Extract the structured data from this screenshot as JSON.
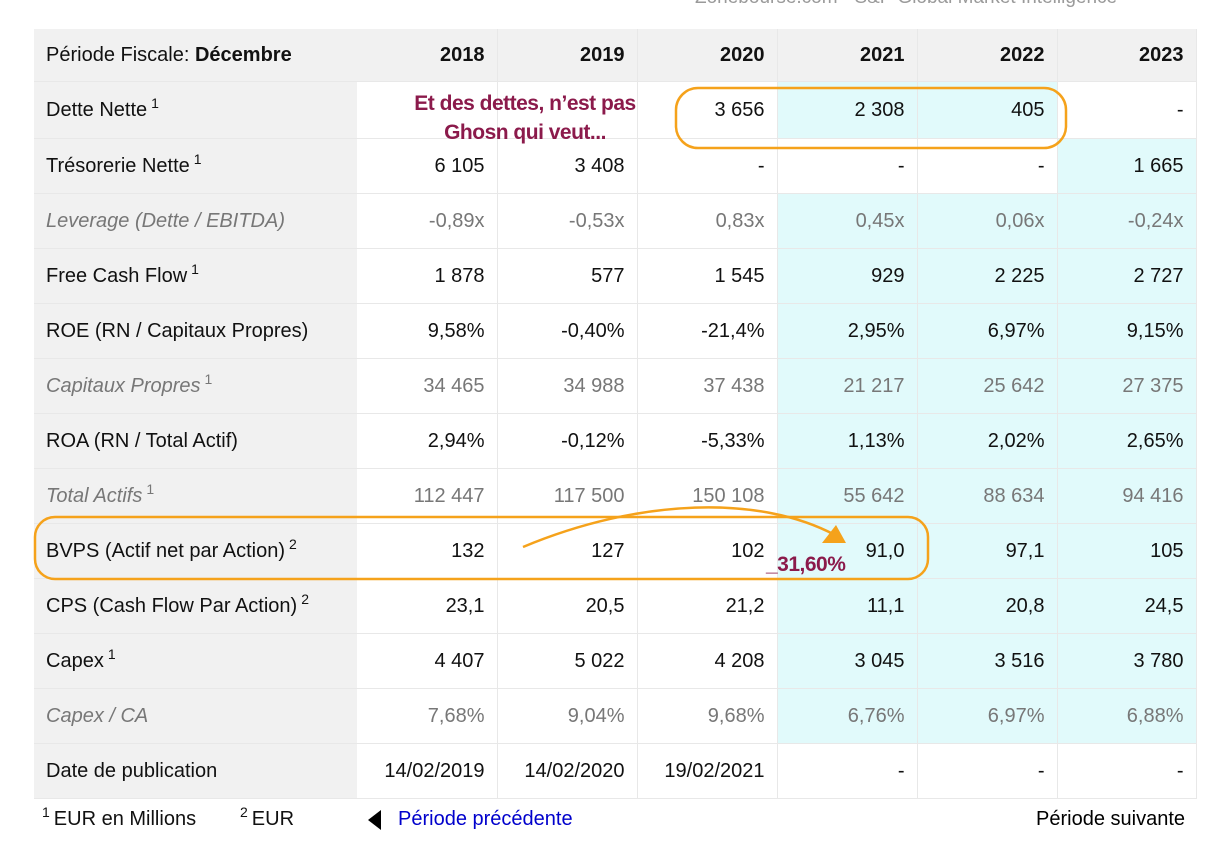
{
  "watermark": "Zonebourse.com - S&P Global Market Intelligence",
  "table": {
    "corner_label": "Période Fiscale: ",
    "corner_value": "Décembre",
    "years": [
      "2018",
      "2019",
      "2020",
      "2021",
      "2022",
      "2023"
    ],
    "rows": [
      {
        "label": "Dette Nette",
        "sup": "1",
        "italic": false,
        "values": [
          "",
          "",
          "3 656",
          "2 308",
          "405",
          "-"
        ]
      },
      {
        "label": "Trésorerie Nette",
        "sup": "1",
        "italic": false,
        "values": [
          "6 105",
          "3 408",
          "-",
          "-",
          "-",
          "1 665"
        ]
      },
      {
        "label": "Leverage (Dette / EBITDA)",
        "sup": "",
        "italic": true,
        "values": [
          "-0,89x",
          "-0,53x",
          "0,83x",
          "0,45x",
          "0,06x",
          "-0,24x"
        ]
      },
      {
        "label": "Free Cash Flow",
        "sup": "1",
        "italic": false,
        "values": [
          "1 878",
          "577",
          "1 545",
          "929",
          "2 225",
          "2 727"
        ]
      },
      {
        "label": "ROE (RN / Capitaux Propres)",
        "sup": "",
        "italic": false,
        "values": [
          "9,58%",
          "-0,40%",
          "-21,4%",
          "2,95%",
          "6,97%",
          "9,15%"
        ]
      },
      {
        "label": "Capitaux Propres",
        "sup": "1",
        "italic": true,
        "values": [
          "34 465",
          "34 988",
          "37 438",
          "21 217",
          "25 642",
          "27 375"
        ]
      },
      {
        "label": "ROA (RN / Total Actif)",
        "sup": "",
        "italic": false,
        "values": [
          "2,94%",
          "-0,12%",
          "-5,33%",
          "1,13%",
          "2,02%",
          "2,65%"
        ]
      },
      {
        "label": "Total Actifs",
        "sup": "1",
        "italic": true,
        "values": [
          "112 447",
          "117 500",
          "150 108",
          "55 642",
          "88 634",
          "94 416"
        ]
      },
      {
        "label": "BVPS (Actif net par Action)",
        "sup": "2",
        "italic": false,
        "values": [
          "132",
          "127",
          "102",
          "91,0",
          "97,1",
          "105"
        ]
      },
      {
        "label": "CPS (Cash Flow Par Action)",
        "sup": "2",
        "italic": false,
        "values": [
          "23,1",
          "20,5",
          "21,2",
          "11,1",
          "20,8",
          "24,5"
        ]
      },
      {
        "label": "Capex",
        "sup": "1",
        "italic": false,
        "values": [
          "4 407",
          "5 022",
          "4 208",
          "3 045",
          "3 516",
          "3 780"
        ]
      },
      {
        "label": "Capex / CA",
        "sup": "",
        "italic": true,
        "values": [
          "7,68%",
          "9,04%",
          "9,68%",
          "6,76%",
          "6,97%",
          "6,88%"
        ]
      },
      {
        "label": "Date de publication",
        "sup": "",
        "italic": false,
        "values": [
          "14/02/2019",
          "14/02/2020",
          "19/02/2021",
          "-",
          "-",
          "-"
        ]
      }
    ]
  },
  "annotations": {
    "debt_note_line1": "Et des dettes, n’est pas",
    "debt_note_line2": "Ghosn qui veut...",
    "bvps_change": "_31,60%"
  },
  "footer": {
    "note1_sup": "1",
    "note1": "EUR en Millions",
    "note2_sup": "2",
    "note2": "EUR",
    "prev_label": "Période précédente",
    "next_label": "Période suivante"
  },
  "colors": {
    "estimate_highlight": "#e1fafb",
    "annotation_orange": "#f5a21b",
    "annotation_text": "#8b1a4b",
    "link_blue": "#0000cc"
  }
}
